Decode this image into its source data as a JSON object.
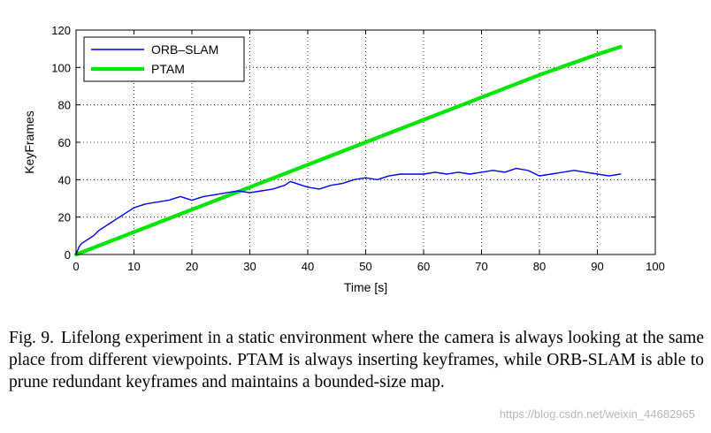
{
  "chart_data": {
    "type": "line",
    "xlabel": "Time [s]",
    "ylabel": "KeyFrames",
    "xlim": [
      0,
      100
    ],
    "ylim": [
      0,
      120
    ],
    "xticks": [
      0,
      10,
      20,
      30,
      40,
      50,
      60,
      70,
      80,
      90,
      100
    ],
    "yticks": [
      0,
      20,
      40,
      60,
      80,
      100,
      120
    ],
    "grid": true,
    "legend_position": "top-left",
    "series": [
      {
        "name": "ORB–SLAM",
        "color": "#0000ff",
        "x": [
          0,
          0.5,
          1,
          2,
          3,
          4,
          5,
          6,
          7,
          8,
          9,
          10,
          12,
          14,
          16,
          18,
          20,
          22,
          24,
          26,
          28,
          30,
          32,
          34,
          36,
          37,
          38,
          40,
          42,
          44,
          46,
          48,
          50,
          52,
          54,
          56,
          58,
          60,
          62,
          64,
          66,
          68,
          70,
          72,
          74,
          76,
          78,
          80,
          82,
          84,
          86,
          88,
          90,
          92,
          94
        ],
        "y": [
          0,
          4,
          6,
          8,
          10,
          13,
          15,
          17,
          19,
          21,
          23,
          25,
          27,
          28,
          29,
          31,
          29,
          31,
          32,
          33,
          34,
          33,
          34,
          35,
          37,
          39,
          38,
          36,
          35,
          37,
          38,
          40,
          41,
          40,
          42,
          43,
          43,
          43,
          44,
          43,
          44,
          43,
          44,
          45,
          44,
          46,
          45,
          42,
          43,
          44,
          45,
          44,
          43,
          42,
          43
        ]
      },
      {
        "name": "PTAM",
        "color": "#00e600",
        "x": [
          0,
          10,
          20,
          30,
          40,
          50,
          60,
          70,
          80,
          90,
          94
        ],
        "y": [
          0,
          12,
          24,
          36,
          48,
          60,
          72,
          84,
          96,
          107,
          111
        ]
      }
    ]
  },
  "caption": {
    "label": "Fig. 9.",
    "text": "Lifelong experiment in a static environment where the camera is always looking at the same place from different viewpoints. PTAM is always inserting keyframes, while ORB-SLAM is able to prune redundant keyframes and maintains a bounded-size map."
  },
  "watermark": "https://blog.csdn.net/weixin_44682965"
}
